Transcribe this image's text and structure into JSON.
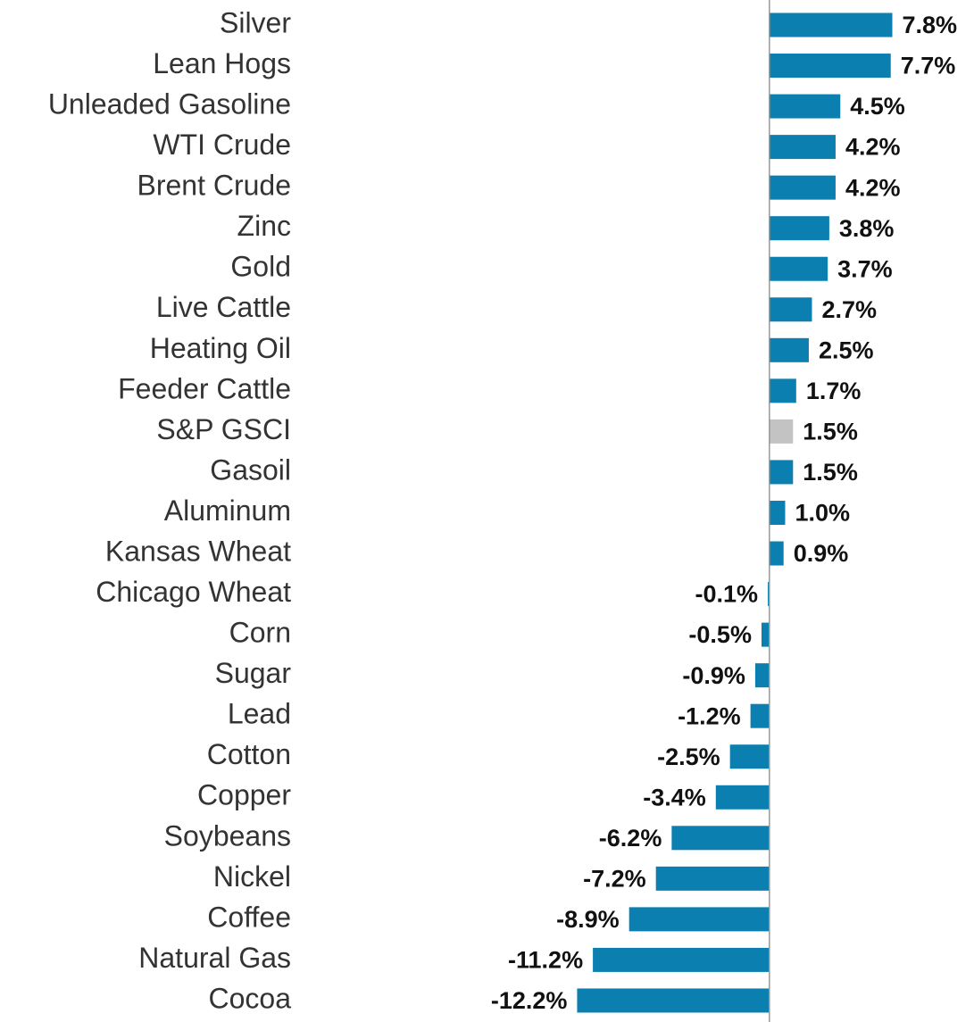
{
  "chart_data": {
    "type": "hbar",
    "categories": [
      "Silver",
      "Lean Hogs",
      "Unleaded Gasoline",
      "WTI Crude",
      "Brent Crude",
      "Zinc",
      "Gold",
      "Live Cattle",
      "Heating Oil",
      "Feeder Cattle",
      "S&P GSCI",
      "Gasoil",
      "Aluminum",
      "Kansas Wheat",
      "Chicago Wheat",
      "Corn",
      "Sugar",
      "Lead",
      "Cotton",
      "Copper",
      "Soybeans",
      "Nickel",
      "Coffee",
      "Natural Gas",
      "Cocoa"
    ],
    "values": [
      7.8,
      7.7,
      4.5,
      4.2,
      4.2,
      3.8,
      3.7,
      2.7,
      2.5,
      1.7,
      1.5,
      1.5,
      1.0,
      0.9,
      -0.1,
      -0.5,
      -0.9,
      -1.2,
      -2.5,
      -3.4,
      -6.2,
      -7.2,
      -8.9,
      -11.2,
      -12.2
    ],
    "value_labels": [
      "7.8%",
      "7.7%",
      "4.5%",
      "4.2%",
      "4.2%",
      "3.8%",
      "3.7%",
      "2.7%",
      "2.5%",
      "1.7%",
      "1.5%",
      "1.5%",
      "1.0%",
      "0.9%",
      "-0.1%",
      "-0.5%",
      "-0.9%",
      "-1.2%",
      "-2.5%",
      "-3.4%",
      "-6.2%",
      "-7.2%",
      "-8.9%",
      "-11.2%",
      "-12.2%"
    ],
    "colors": [
      "#0a7fb0",
      "#0a7fb0",
      "#0a7fb0",
      "#0a7fb0",
      "#0a7fb0",
      "#0a7fb0",
      "#0a7fb0",
      "#0a7fb0",
      "#0a7fb0",
      "#0a7fb0",
      "#c3c3c3",
      "#0a7fb0",
      "#0a7fb0",
      "#0a7fb0",
      "#0a7fb0",
      "#0a7fb0",
      "#0a7fb0",
      "#0a7fb0",
      "#0a7fb0",
      "#0a7fb0",
      "#0a7fb0",
      "#0a7fb0",
      "#0a7fb0",
      "#0a7fb0",
      "#0a7fb0"
    ],
    "xlim": [
      -15,
      11
    ]
  }
}
